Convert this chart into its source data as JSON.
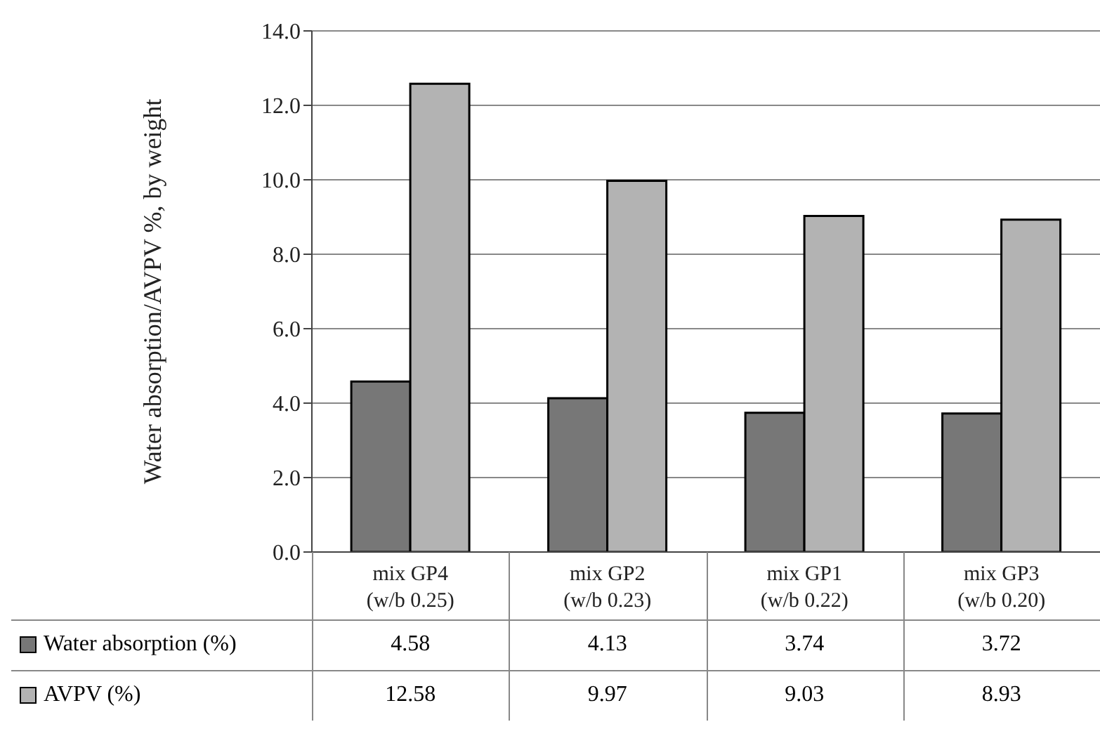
{
  "chart_data": {
    "type": "bar",
    "ylabel": "Water absorption/AVPV %, by weight",
    "categories": [
      "mix GP4 (w/b 0.25)",
      "mix GP2 (w/b 0.23)",
      "mix GP1 (w/b 0.22)",
      "mix GP3 (w/b 0.20)"
    ],
    "series": [
      {
        "name": "Water absorption (%)",
        "color": "#777777",
        "values": [
          4.58,
          4.13,
          3.74,
          3.72
        ]
      },
      {
        "name": "AVPV (%)",
        "color": "#b3b3b3",
        "values": [
          12.58,
          9.97,
          9.03,
          8.93
        ]
      }
    ],
    "ylim": [
      0,
      14
    ],
    "yticks": [
      {
        "value": 0,
        "label": "0.0"
      },
      {
        "value": 2,
        "label": "2.0"
      },
      {
        "value": 4,
        "label": "4.0"
      },
      {
        "value": 6,
        "label": "6.0"
      },
      {
        "value": 8,
        "label": "8.0"
      },
      {
        "value": 10,
        "label": "10.0"
      },
      {
        "value": 12,
        "label": "12.0"
      },
      {
        "value": 14,
        "label": "14.0"
      }
    ],
    "grid": "y",
    "legend": "bottom",
    "data_labels": true
  }
}
